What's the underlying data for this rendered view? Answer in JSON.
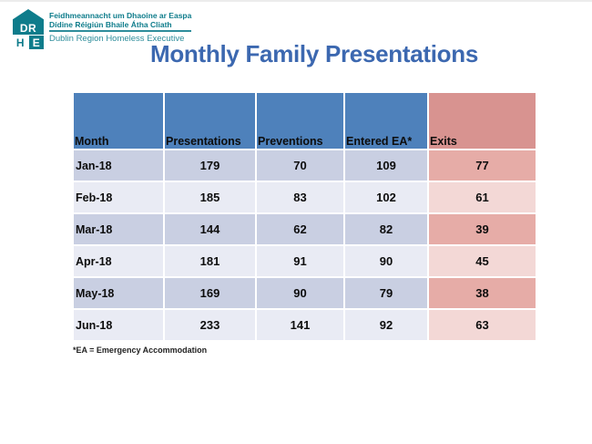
{
  "logo": {
    "letters": [
      "DR",
      "H",
      "E"
    ],
    "line1": "Feidhmeannacht um Dhaoine ar Easpa",
    "line2": "Dídine Réigiún Bhaile Átha Cliath",
    "line3": "Dublin Region Homeless Executive"
  },
  "chart_data": {
    "type": "table",
    "title": "Monthly Family Presentations",
    "columns": [
      "Month",
      "Presentations",
      "Preventions",
      "Entered EA*",
      "Exits"
    ],
    "rows": [
      [
        "Jan-18",
        179,
        70,
        109,
        77
      ],
      [
        "Feb-18",
        185,
        83,
        102,
        61
      ],
      [
        "Mar-18",
        144,
        62,
        82,
        39
      ],
      [
        "Apr-18",
        181,
        91,
        90,
        45
      ],
      [
        "May-18",
        169,
        90,
        79,
        38
      ],
      [
        "Jun-18",
        233,
        141,
        92,
        63
      ]
    ],
    "footnote": "*EA = Emergency Accommodation",
    "layout": {
      "banding": "alternating rows, dark band first",
      "exits_column_highlighted": true
    }
  },
  "colors": {
    "header_blue": "#4E81BB",
    "header_pink": "#D89390",
    "band_dark": "#C9CFE2",
    "band_light": "#E9EBF4",
    "exit_band_dark": "#E6ACA7",
    "exit_band_light": "#F3D8D6",
    "title_blue": "#3C68B0",
    "logo_teal": "#0E7C8B",
    "logo_teal_light": "#2E8D9B"
  }
}
